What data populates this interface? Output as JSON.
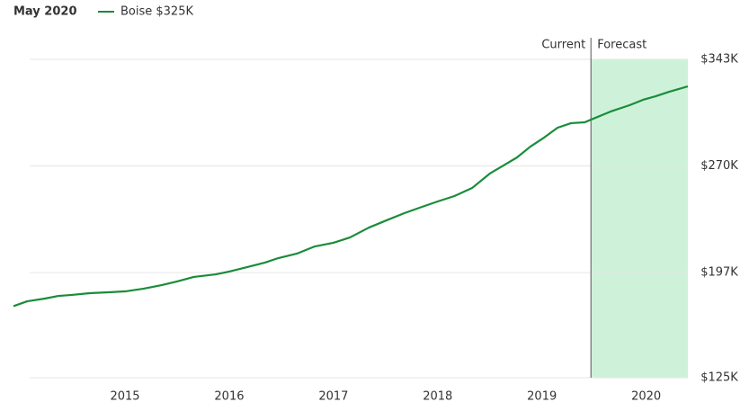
{
  "chart_data": {
    "type": "line",
    "title": "May 2020",
    "current_label": "Current",
    "forecast_label": "Forecast",
    "forecast_start": 2019.47,
    "forecast_color": "#cdf2d9",
    "grid": true,
    "xlim": [
      2013.93,
      2020.4
    ],
    "xticks": [
      2015,
      2016,
      2017,
      2018,
      2019,
      2020
    ],
    "ylim": [
      125000,
      343000
    ],
    "yticks": [
      {
        "value": 125000,
        "label": "$125K"
      },
      {
        "value": 197000,
        "label": "$197K"
      },
      {
        "value": 270000,
        "label": "$270K"
      },
      {
        "value": 343000,
        "label": "$343K"
      }
    ],
    "x": [
      2013.93,
      2014.06,
      2014.23,
      2014.36,
      2014.49,
      2014.66,
      2014.84,
      2015,
      2015.18,
      2015.35,
      2015.5,
      2015.66,
      2015.87,
      2016,
      2016.17,
      2016.34,
      2016.47,
      2016.65,
      2016.82,
      2017,
      2017.16,
      2017.34,
      2017.51,
      2017.68,
      2017.85,
      2018,
      2018.16,
      2018.33,
      2018.5,
      2018.63,
      2018.76,
      2018.89,
      2019.02,
      2019.15,
      2019.28,
      2019.41,
      2019.47,
      2019.66,
      2019.84,
      2019.97,
      2020.09,
      2020.22,
      2020.4
    ],
    "series": [
      {
        "name": "Boise $325K",
        "color": "#1a8c3a",
        "values": [
          174000,
          177300,
          179200,
          181000,
          181700,
          182900,
          183500,
          184100,
          186000,
          188400,
          190900,
          194000,
          195800,
          197700,
          200700,
          203800,
          206900,
          210000,
          214900,
          217400,
          221100,
          227800,
          232800,
          237700,
          242000,
          245700,
          249400,
          254900,
          264800,
          270300,
          275800,
          283300,
          289400,
          296200,
          299300,
          299900,
          301700,
          307300,
          311600,
          315300,
          317700,
          320800,
          324500
        ]
      }
    ]
  }
}
